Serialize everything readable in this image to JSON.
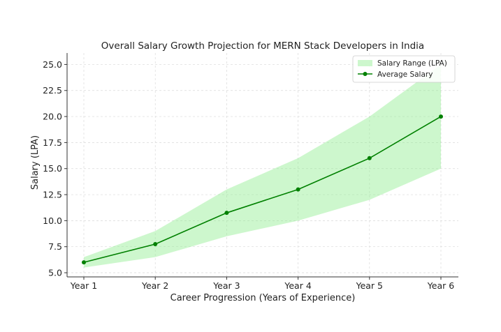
{
  "chart_data": {
    "type": "line",
    "title": "Overall Salary Growth Projection for MERN Stack Developers in India",
    "xlabel": "Career Progression (Years of Experience)",
    "ylabel": "Salary (LPA)",
    "categories": [
      "Year 1",
      "Year 2",
      "Year 3",
      "Year 4",
      "Year 5",
      "Year 6"
    ],
    "ylim": [
      4.6,
      26.1
    ],
    "yticks": [
      "5.0",
      "7.5",
      "10.0",
      "12.5",
      "15.0",
      "17.5",
      "20.0",
      "22.5",
      "25.0"
    ],
    "grid": true,
    "legend_position": "top-right",
    "series": [
      {
        "name": "Average Salary",
        "kind": "line",
        "color": "#008000",
        "values": [
          6,
          7.75,
          10.75,
          13,
          16,
          20
        ]
      }
    ],
    "range": {
      "name": "Salary Range (LPA)",
      "kind": "area",
      "color": "#90EE90",
      "lower": [
        5.5,
        6.5,
        8.5,
        10,
        12,
        15
      ],
      "upper": [
        6.5,
        9,
        13,
        16,
        20,
        25
      ]
    }
  }
}
